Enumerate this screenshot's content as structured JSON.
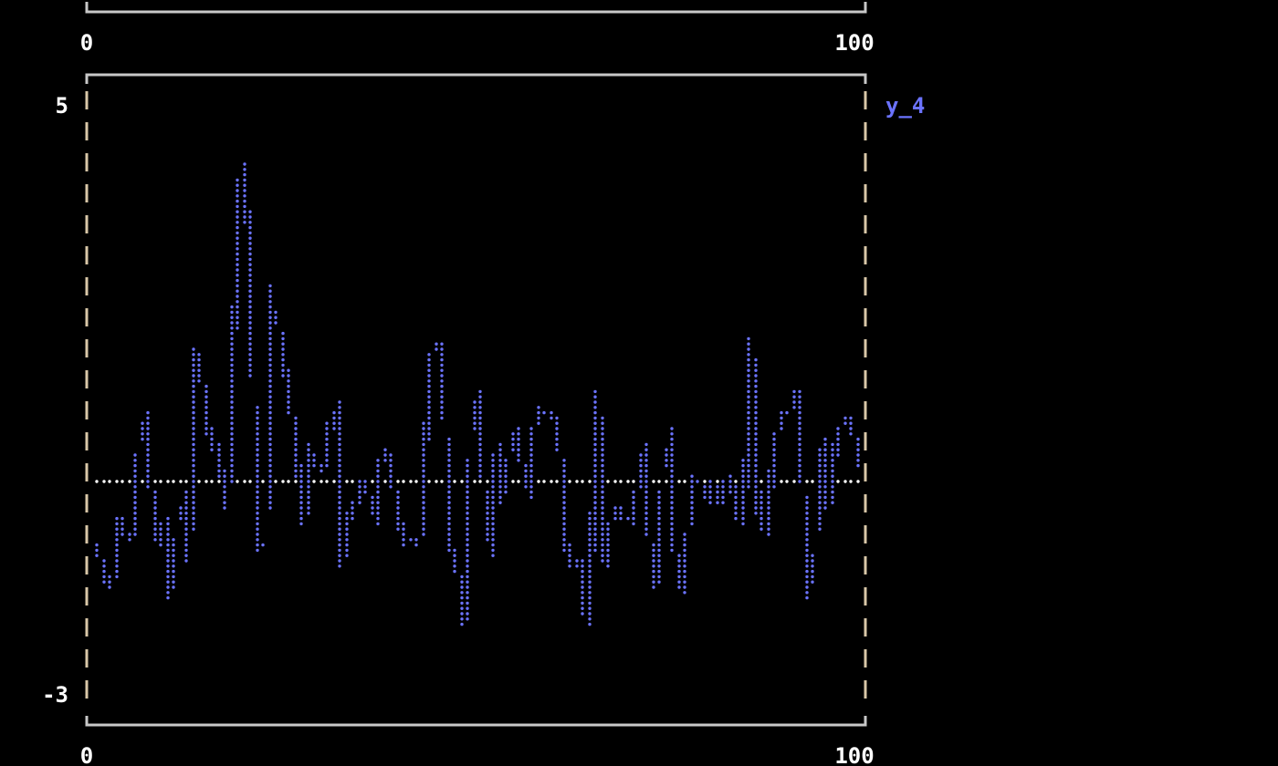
{
  "chart_data": {
    "type": "line",
    "title": "",
    "xlabel": "",
    "ylabel": "",
    "xlim": [
      0,
      100
    ],
    "ylim": [
      -3,
      5
    ],
    "x_tick_labels": [
      "0",
      "100"
    ],
    "y_tick_labels": [
      "5",
      "-3"
    ],
    "top_panel_x_tick_labels": [
      "0",
      "100"
    ],
    "grid": false,
    "reference_line": {
      "y": 0,
      "color": "#ffffff",
      "style": "dotted"
    },
    "legend_placement": "right",
    "series": [
      {
        "name": "y_4",
        "color": "#6b73ff",
        "x": [
          0,
          1,
          2,
          3,
          4,
          5,
          6,
          7,
          8,
          9,
          10,
          11,
          12,
          13,
          14,
          15,
          16,
          17,
          18,
          19,
          20,
          21,
          22,
          23,
          24,
          25,
          26,
          27,
          28,
          29,
          30,
          31,
          32,
          33,
          34,
          35,
          36,
          37,
          38,
          39,
          40,
          41,
          42,
          43,
          44,
          45,
          46,
          47,
          48,
          49,
          50,
          51,
          52,
          53,
          54,
          55,
          56,
          57,
          58,
          59,
          60,
          61,
          62,
          63,
          64,
          65,
          66,
          67,
          68,
          69,
          70,
          71,
          72,
          73,
          74,
          75,
          76,
          77,
          78,
          79,
          80,
          81,
          82,
          83,
          84,
          85,
          86,
          87,
          88,
          89,
          90,
          91,
          92,
          93,
          94,
          95,
          96,
          97,
          98,
          99
        ],
        "values": [
          -0.9,
          -1.2,
          -1.7,
          -0.5,
          -0.8,
          -0.7,
          1.3,
          0.1,
          -0.9,
          -0.5,
          -2.0,
          0.5,
          -1.6,
          1.8,
          1.2,
          0.4,
          0.5,
          -0.7,
          2.2,
          4.5,
          3.0,
          -0.8,
          -1.2,
          2.6,
          1.9,
          1.2,
          0.5,
          -0.7,
          0.5,
          0.1,
          0.3,
          1.6,
          -1.2,
          -0.4,
          -0.3,
          0.2,
          -0.8,
          0.3,
          0.4,
          -0.3,
          -0.9,
          -0.8,
          -0.9,
          0.9,
          2.1,
          1.5,
          -0.9,
          -1.3,
          -2.1,
          1.7,
          0.5,
          -1.2,
          0.5,
          -0.4,
          0.8,
          0.5,
          -0.3,
          0.8,
          1.0,
          0.9,
          0.8,
          -0.9,
          -1.2,
          -1.1,
          -2.5,
          1.7,
          -1.2,
          -0.5,
          -0.3,
          -0.7,
          -0.3,
          0.5,
          -1.0,
          -1.6,
          1.4,
          -0.9,
          -1.6,
          -0.5,
          0.3,
          -0.4,
          0.0,
          -0.3,
          0.1,
          -0.2,
          -0.9,
          2.1,
          -0.4,
          -0.8,
          0.5,
          0.9,
          0.9,
          1.2,
          -0.5,
          -2.2,
          0.8,
          -0.4,
          0.5,
          0.8,
          0.9,
          0.2
        ]
      }
    ]
  }
}
